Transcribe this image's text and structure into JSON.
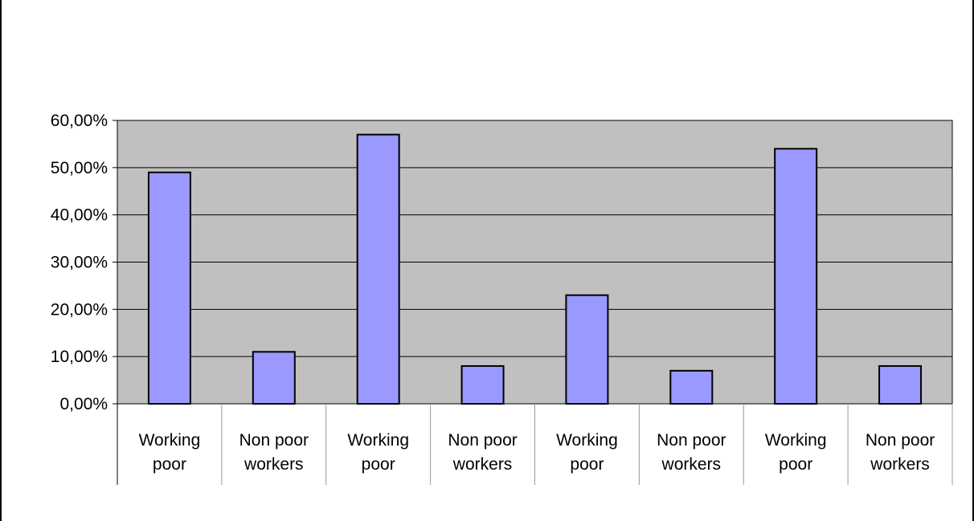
{
  "chart_data": {
    "type": "bar",
    "title": "",
    "xlabel": "",
    "ylabel": "",
    "categories": [
      [
        "Working",
        "poor"
      ],
      [
        "Non poor",
        "workers"
      ],
      [
        "Working",
        "poor"
      ],
      [
        "Non poor",
        "workers"
      ],
      [
        "Working",
        "poor"
      ],
      [
        "Non poor",
        "workers"
      ],
      [
        "Working",
        "poor"
      ],
      [
        "Non poor",
        "workers"
      ]
    ],
    "values": [
      49,
      11,
      57,
      8,
      23,
      7,
      54,
      8
    ],
    "ylim": [
      0,
      60
    ],
    "yticks": [
      0,
      10,
      20,
      30,
      40,
      50,
      60
    ],
    "ytick_labels": [
      "0,00%",
      "10,00%",
      "20,00%",
      "30,00%",
      "40,00%",
      "50,00%",
      "60,00%"
    ],
    "grid": true,
    "legend": "none",
    "colors": {
      "bar_fill": "#9999ff",
      "bar_stroke": "#000000",
      "plot_background": "#c0c0c0",
      "gridline": "#000000",
      "frame": "#000000"
    }
  }
}
